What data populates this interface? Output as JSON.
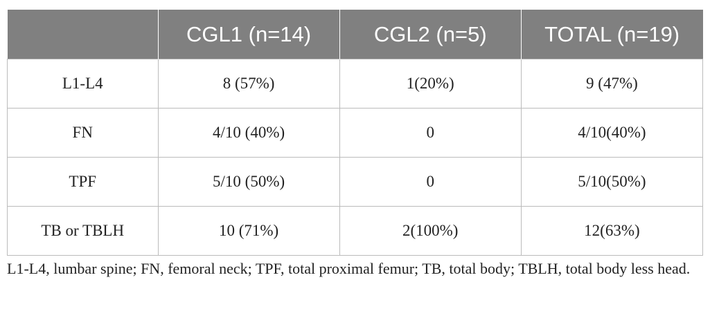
{
  "table": {
    "header": [
      "",
      "CGL1 (n=14)",
      "CGL2 (n=5)",
      "TOTAL (n=19)"
    ],
    "rows": [
      [
        "L1-L4",
        "8 (57%)",
        "1(20%)",
        "9 (47%)"
      ],
      [
        "FN",
        "4/10 (40%)",
        "0",
        "4/10(40%)"
      ],
      [
        "TPF",
        "5/10 (50%)",
        "0",
        "5/10(50%)"
      ],
      [
        "TB or TBLH",
        "10 (71%)",
        "2(100%)",
        "12(63%)"
      ]
    ]
  },
  "footnote": "L1-L4, lumbar spine; FN, femoral neck; TPF, total proximal femur; TB, total body; TBLH, total body less head."
}
